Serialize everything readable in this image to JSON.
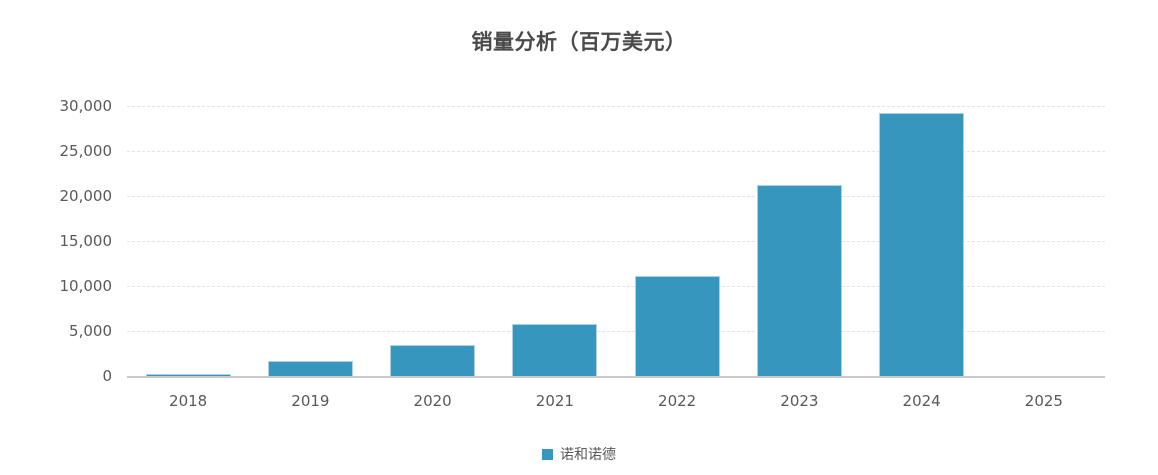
{
  "title": "销量分析（百万美元）",
  "legend": {
    "series_label": "诺和诺德",
    "marker_color": "#3696bd"
  },
  "colors": {
    "bar_fill": "#3696bd",
    "bar_border": "#afd2e2",
    "axis_line": "#c9c9c9",
    "grid_line": "#e3e3e3",
    "axis_text": "#595959",
    "title_text": "#4a4a4a",
    "background": "#ffffff"
  },
  "chart_data": {
    "type": "bar",
    "title": "销量分析（百万美元）",
    "categories": [
      "2018",
      "2019",
      "2020",
      "2021",
      "2022",
      "2023",
      "2024",
      "2025"
    ],
    "series": [
      {
        "name": "诺和诺德",
        "values": [
          260,
          1700,
          3500,
          5800,
          11100,
          21200,
          29200,
          0
        ]
      }
    ],
    "xlabel": "",
    "ylabel": "",
    "ylim": [
      0,
      30000
    ],
    "ytick_step": 5000,
    "ytick_labels": [
      "0",
      "5,000",
      "10,000",
      "15,000",
      "20,000",
      "25,000",
      "30,000"
    ],
    "grid": "horizontal-dashed",
    "legend_position": "bottom-center"
  }
}
